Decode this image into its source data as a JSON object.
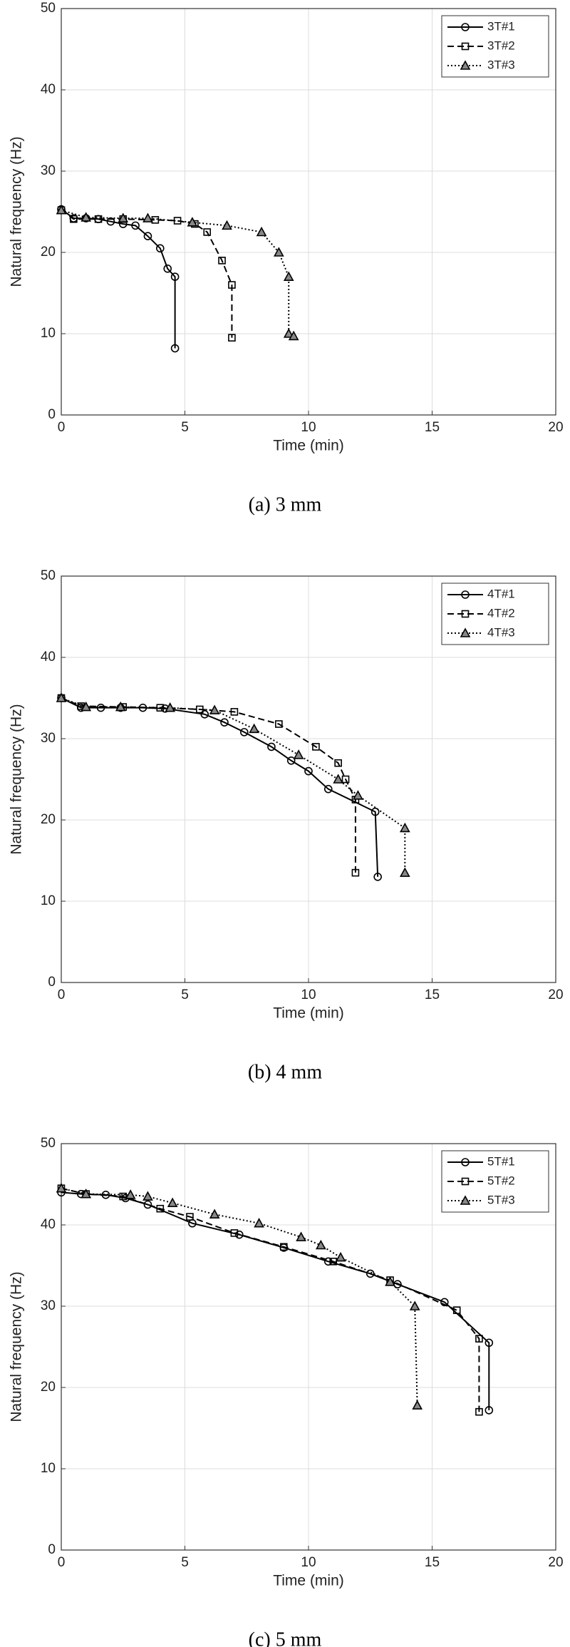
{
  "chart_data": [
    {
      "type": "line",
      "caption": "(a)  3  mm",
      "xlabel": "Time (min)",
      "ylabel": "Natural frequency (Hz)",
      "xlim": [
        0,
        20
      ],
      "ylim": [
        0,
        50
      ],
      "xticks": [
        0,
        5,
        10,
        15,
        20
      ],
      "yticks": [
        0,
        10,
        20,
        30,
        40,
        50
      ],
      "grid": true,
      "legend": "upper right",
      "series": [
        {
          "name": "3T#1",
          "color": "#000000",
          "dash": "solid",
          "marker": "circle",
          "x": [
            0,
            0.5,
            1,
            1.5,
            2,
            2.5,
            3,
            3.5,
            4,
            4.3,
            4.6,
            4.6
          ],
          "values": [
            25.3,
            24.2,
            24.2,
            24.1,
            23.8,
            23.5,
            23.3,
            22,
            20.5,
            18,
            17,
            8.2
          ]
        },
        {
          "name": "3T#2",
          "color": "#000000",
          "dash": "dashed",
          "marker": "square",
          "x": [
            0,
            0.5,
            1.5,
            2.5,
            3.8,
            4.7,
            5.4,
            5.9,
            6.5,
            6.9,
            6.9
          ],
          "values": [
            25.2,
            24.1,
            24.1,
            24.1,
            24,
            23.9,
            23.5,
            22.5,
            19,
            16,
            9.5
          ]
        },
        {
          "name": "3T#3",
          "color": "#000000",
          "dash": "dotted",
          "marker": "triangle",
          "x": [
            0,
            1,
            2.5,
            3.5,
            5.3,
            6.7,
            8.1,
            8.8,
            9.2,
            9.2,
            9.4
          ],
          "values": [
            25.2,
            24.3,
            24.2,
            24.2,
            23.7,
            23.3,
            22.5,
            20,
            17,
            10,
            9.7
          ]
        }
      ]
    },
    {
      "type": "line",
      "caption": "(b)  4  mm",
      "xlabel": "Time (min)",
      "ylabel": "Natural frequency (Hz)",
      "xlim": [
        0,
        20
      ],
      "ylim": [
        0,
        50
      ],
      "xticks": [
        0,
        5,
        10,
        15,
        20
      ],
      "yticks": [
        0,
        10,
        20,
        30,
        40,
        50
      ],
      "grid": true,
      "legend": "upper right",
      "series": [
        {
          "name": "4T#1",
          "color": "#000000",
          "dash": "solid",
          "marker": "circle",
          "x": [
            0,
            0.8,
            1.6,
            2.4,
            3.3,
            4.2,
            5.8,
            6.6,
            7.4,
            8.5,
            9.3,
            10,
            10.8,
            12.7,
            12.8
          ],
          "values": [
            35,
            33.8,
            33.8,
            33.8,
            33.8,
            33.7,
            33,
            32,
            30.8,
            29,
            27.3,
            26,
            23.8,
            21,
            13
          ]
        },
        {
          "name": "4T#2",
          "color": "#000000",
          "dash": "dashed",
          "marker": "square",
          "x": [
            0,
            0.8,
            2.5,
            4,
            5.6,
            7,
            8.8,
            10.3,
            11.2,
            11.5,
            11.9,
            11.9
          ],
          "values": [
            35,
            34,
            33.9,
            33.8,
            33.6,
            33.3,
            31.8,
            29,
            27,
            25,
            22.5,
            13.5
          ]
        },
        {
          "name": "4T#3",
          "color": "#000000",
          "dash": "dotted",
          "marker": "triangle",
          "x": [
            0,
            1,
            2.4,
            4.4,
            6.2,
            7.8,
            9.6,
            11.2,
            12,
            13.9,
            13.9
          ],
          "values": [
            35,
            33.9,
            33.9,
            33.8,
            33.5,
            31.2,
            28,
            25,
            23,
            19,
            13.5
          ]
        }
      ]
    },
    {
      "type": "line",
      "caption": "(c)  5  mm",
      "xlabel": "Time (min)",
      "ylabel": "Natural frequency (Hz)",
      "xlim": [
        0,
        20
      ],
      "ylim": [
        0,
        50
      ],
      "xticks": [
        0,
        5,
        10,
        15,
        20
      ],
      "yticks": [
        0,
        10,
        20,
        30,
        40,
        50
      ],
      "grid": true,
      "legend": "upper right",
      "series": [
        {
          "name": "5T#1",
          "color": "#000000",
          "dash": "solid",
          "marker": "circle",
          "x": [
            0,
            0.8,
            1.8,
            2.6,
            3.5,
            5.3,
            7.2,
            9,
            10.8,
            12.5,
            13.6,
            15.5,
            17.3,
            17.3
          ],
          "values": [
            44,
            43.8,
            43.7,
            43.3,
            42.5,
            40.2,
            38.8,
            37.2,
            35.5,
            34,
            32.7,
            30.5,
            25.5,
            17.2
          ]
        },
        {
          "name": "5T#2",
          "color": "#000000",
          "dash": "dashed",
          "marker": "square",
          "x": [
            0,
            1,
            2.5,
            4,
            5.2,
            7,
            9,
            11,
            13.3,
            16,
            16.9,
            16.9
          ],
          "values": [
            44.5,
            43.8,
            43.5,
            42,
            41,
            39,
            37.3,
            35.5,
            33.2,
            29.5,
            26,
            17
          ]
        },
        {
          "name": "5T#3",
          "color": "#000000",
          "dash": "dotted",
          "marker": "triangle",
          "x": [
            0,
            1,
            2.8,
            3.5,
            4.5,
            6.2,
            8,
            9.7,
            10.5,
            11.3,
            13.3,
            14.3,
            14.4
          ],
          "values": [
            44.5,
            43.8,
            43.7,
            43.5,
            42.7,
            41.3,
            40.2,
            38.5,
            37.5,
            36,
            33,
            30,
            17.8
          ]
        }
      ]
    }
  ]
}
